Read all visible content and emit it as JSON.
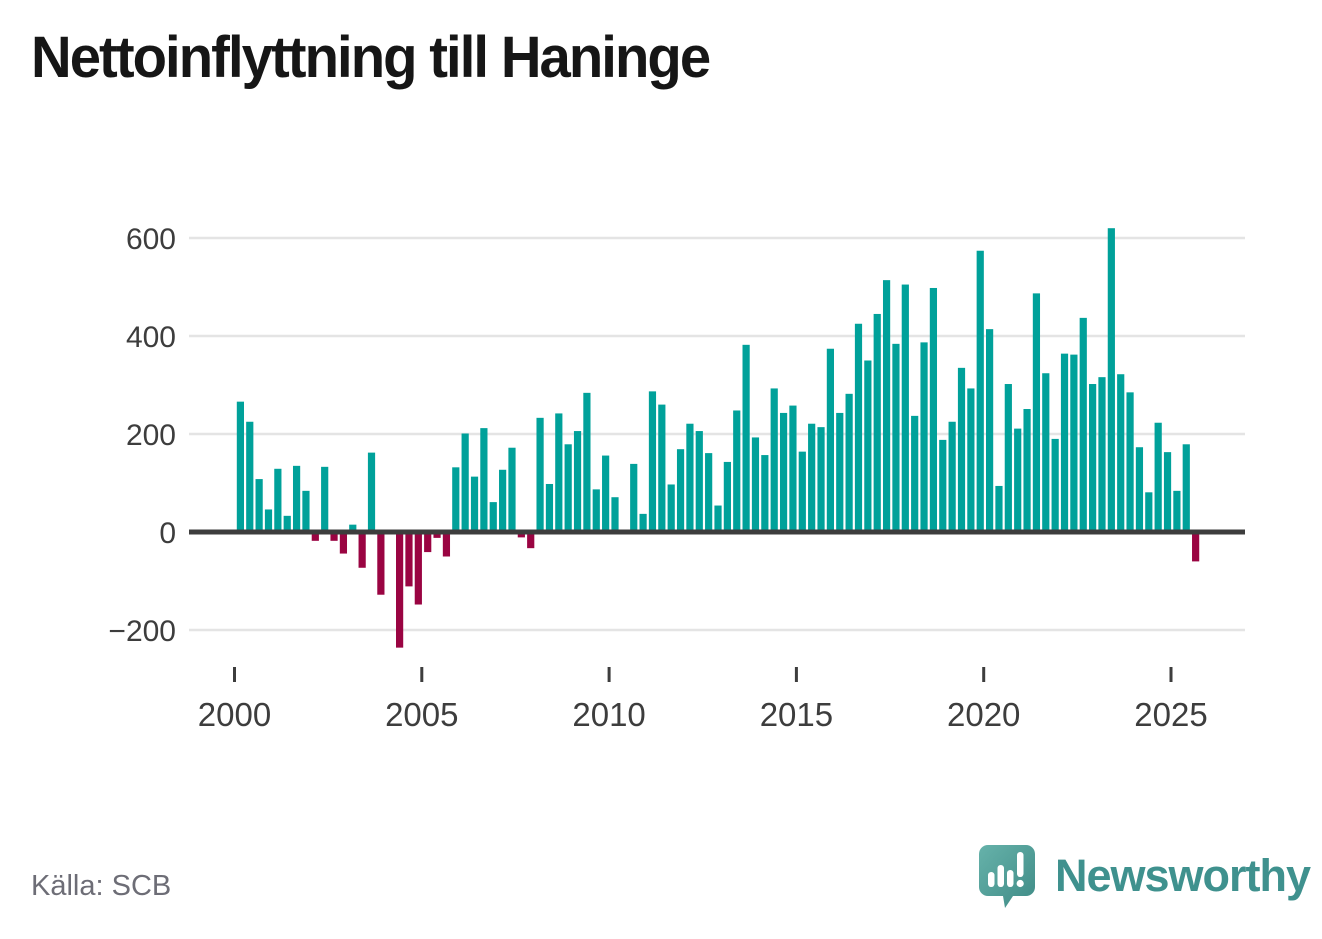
{
  "header": {
    "title": "Nettoinflyttning till Haninge"
  },
  "footer": {
    "source": "Källa: SCB",
    "brand": "Newsworthy"
  },
  "colors": {
    "positive_bar": "#00a19a",
    "negative_bar": "#9a0442",
    "axis_line": "#3d3d3d",
    "gridline": "#e4e4e4",
    "tick_label": "#3d3d3d",
    "source_text": "#6d6d76",
    "brand_teal": "#3f918e",
    "logo_gradient_start": "#66b2aa",
    "logo_gradient_end": "#3f8b86"
  },
  "chart_data": {
    "type": "bar",
    "title": "Nettoinflyttning till Haninge",
    "xlabel": "",
    "ylabel": "",
    "x_unit": "quarter",
    "grid": "horizontal",
    "legend": "none",
    "ylim": [
      -262,
      660
    ],
    "yticks": [
      {
        "value": 600,
        "label": "600"
      },
      {
        "value": 400,
        "label": "400"
      },
      {
        "value": 200,
        "label": "200"
      },
      {
        "value": 0,
        "label": "0"
      },
      {
        "value": -200,
        "label": "−200"
      }
    ],
    "xticks": [
      {
        "value": 2000,
        "label": "2000"
      },
      {
        "value": 2005,
        "label": "2005"
      },
      {
        "value": 2010,
        "label": "2010"
      },
      {
        "value": 2015,
        "label": "2015"
      },
      {
        "value": 2020,
        "label": "2020"
      },
      {
        "value": 2025,
        "label": "2025"
      }
    ],
    "categories": [
      "2000K1",
      "2000K2",
      "2000K3",
      "2000K4",
      "2001K1",
      "2001K2",
      "2001K3",
      "2001K4",
      "2002K1",
      "2002K2",
      "2002K3",
      "2002K4",
      "2003K1",
      "2003K2",
      "2003K3",
      "2003K4",
      "2004K1",
      "2004K2",
      "2004K3",
      "2004K4",
      "2005K1",
      "2005K2",
      "2005K3",
      "2005K4",
      "2006K1",
      "2006K2",
      "2006K3",
      "2006K4",
      "2007K1",
      "2007K2",
      "2007K3",
      "2007K4",
      "2008K1",
      "2008K2",
      "2008K3",
      "2008K4",
      "2009K1",
      "2009K2",
      "2009K3",
      "2009K4",
      "2010K1",
      "2010K2",
      "2010K3",
      "2010K4",
      "2011K1",
      "2011K2",
      "2011K3",
      "2011K4",
      "2012K1",
      "2012K2",
      "2012K3",
      "2012K4",
      "2013K1",
      "2013K2",
      "2013K3",
      "2013K4",
      "2014K1",
      "2014K2",
      "2014K3",
      "2014K4",
      "2015K1",
      "2015K2",
      "2015K3",
      "2015K4",
      "2016K1",
      "2016K2",
      "2016K3",
      "2016K4",
      "2017K1",
      "2017K2",
      "2017K3",
      "2017K4",
      "2018K1",
      "2018K2",
      "2018K3",
      "2018K4",
      "2019K1",
      "2019K2",
      "2019K3",
      "2019K4",
      "2020K1",
      "2020K2",
      "2020K3",
      "2020K4",
      "2021K1",
      "2021K2",
      "2021K3",
      "2021K4",
      "2022K1",
      "2022K2",
      "2022K3",
      "2022K4",
      "2023K1",
      "2023K2",
      "2023K3",
      "2023K4",
      "2024K1",
      "2024K2",
      "2024K3",
      "2024K4",
      "2025K1",
      "2025K2",
      "2025K3"
    ],
    "values": [
      266,
      225,
      108,
      46,
      129,
      33,
      135,
      84,
      -18,
      133,
      -18,
      -44,
      15,
      -73,
      162,
      -128,
      0,
      -236,
      -111,
      -148,
      -41,
      -12,
      -50,
      132,
      201,
      113,
      212,
      61,
      127,
      172,
      -11,
      -33,
      233,
      98,
      242,
      179,
      206,
      284,
      87,
      156,
      71,
      0,
      139,
      37,
      287,
      260,
      97,
      169,
      221,
      206,
      161,
      54,
      143,
      248,
      382,
      193,
      157,
      293,
      243,
      258,
      164,
      221,
      214,
      374,
      243,
      282,
      425,
      350,
      445,
      514,
      384,
      505,
      237,
      387,
      498,
      188,
      225,
      335,
      293,
      574,
      414,
      94,
      302,
      211,
      251,
      487,
      324,
      190,
      364,
      362,
      437,
      302,
      316,
      620,
      322,
      285,
      173,
      81,
      223,
      163,
      84,
      179,
      -60
    ]
  }
}
